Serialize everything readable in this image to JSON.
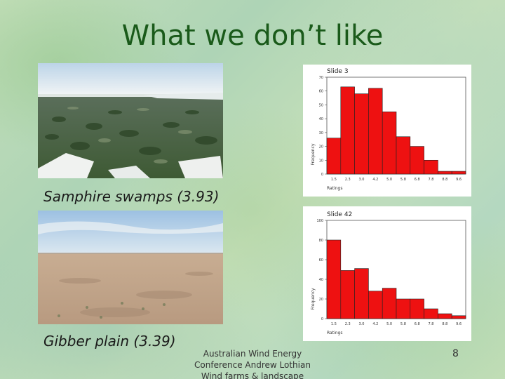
{
  "slide": {
    "title": "What we don’t like",
    "caption_top": "Samphire swamps (3.93)",
    "caption_bottom": "Gibber plain (3.39)",
    "footer_line1": "Australian Wind Energy",
    "footer_line2": "Conference Andrew Lothian",
    "footer_line3": "Wind farms & landscape",
    "page_number": "8"
  },
  "chart_data": [
    {
      "type": "bar",
      "title": "Slide 3",
      "xlabel": "Ratings",
      "ylabel": "Frequency",
      "categories": [
        "1.5",
        "2.3",
        "3.0",
        "4.2",
        "5.0",
        "5.8",
        "6.8",
        "7.8",
        "8.8",
        "9.6"
      ],
      "values": [
        26,
        63,
        58,
        62,
        45,
        27,
        20,
        10,
        2,
        2
      ],
      "yticks": [
        "0",
        "10",
        "20",
        "30",
        "40",
        "50",
        "60",
        "70"
      ],
      "ylim": [
        0,
        70
      ],
      "bar_color": "#ee1111"
    },
    {
      "type": "bar",
      "title": "Slide 42",
      "xlabel": "Ratings",
      "ylabel": "Frequency",
      "categories": [
        "1.5",
        "2.3",
        "3.0",
        "4.2",
        "5.0",
        "5.8",
        "6.8",
        "7.8",
        "8.8",
        "9.6"
      ],
      "values": [
        80,
        49,
        51,
        28,
        31,
        20,
        20,
        10,
        5,
        3
      ],
      "yticks": [
        "0",
        "20",
        "40",
        "60",
        "80",
        "100"
      ],
      "ylim": [
        0,
        100
      ],
      "bar_color": "#ee1111"
    }
  ]
}
